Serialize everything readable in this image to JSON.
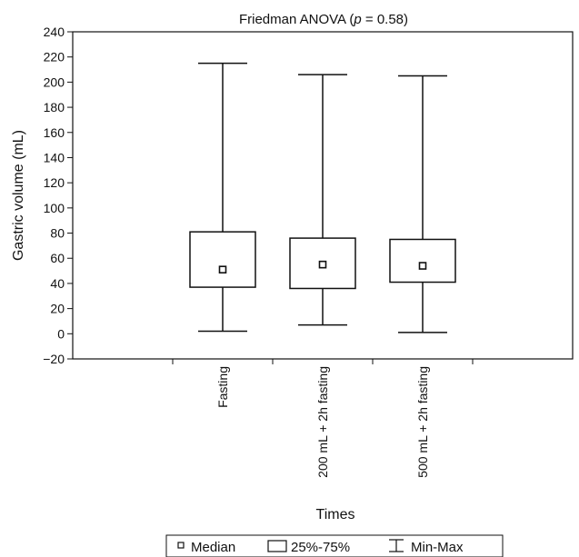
{
  "chart_data": {
    "type": "box",
    "title_prefix": "Friedman ANOVA (",
    "title_p": "p",
    "title_suffix": " = 0.58)",
    "xlabel": "Times",
    "ylabel": "Gastric volume (mL)",
    "ylim": [
      -20,
      240
    ],
    "yticks": [
      240,
      220,
      200,
      180,
      160,
      140,
      120,
      100,
      80,
      60,
      40,
      20,
      0,
      -20
    ],
    "ytick_labels": [
      "240",
      "220",
      "200",
      "180",
      "160",
      "140",
      "120",
      "100",
      "80",
      "60",
      "40",
      "20",
      "0",
      "−20"
    ],
    "categories": [
      "Fasting",
      "200 mL + 2h fasting",
      "500 mL + 2h fasting"
    ],
    "series": [
      {
        "category": "Fasting",
        "min": 2,
        "q1": 37,
        "median": 51,
        "q3": 81,
        "max": 215
      },
      {
        "category": "200 mL + 2h fasting",
        "min": 7,
        "q1": 36,
        "median": 55,
        "q3": 76,
        "max": 206
      },
      {
        "category": "500 mL + 2h fasting",
        "min": 1,
        "q1": 41,
        "median": 54,
        "q3": 75,
        "max": 205
      }
    ],
    "legend": {
      "placement": "bottom",
      "median_label": "Median",
      "box_label": "25%-75%",
      "range_label": "Min-Max"
    }
  }
}
